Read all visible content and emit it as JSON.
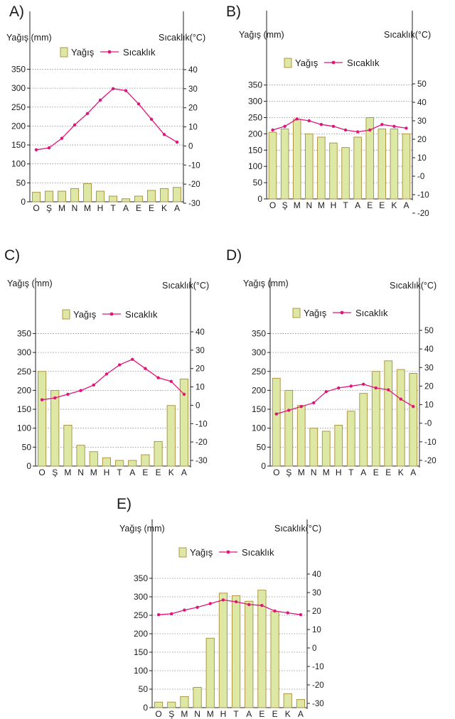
{
  "legend": {
    "precip_label": "Yağış",
    "temp_label": "Sıcaklık"
  },
  "ylabel": "Yağış (mm)",
  "y2label": "Sıcaklık(°C)",
  "colors": {
    "bar_fill": "#dde8a4",
    "bar_stroke": "#a88e3a",
    "temp_line": "#e0157a",
    "grid": "#8a8a8a",
    "axis": "#222222"
  },
  "chart_data": [
    {
      "type": "bar",
      "label": "A)",
      "categories": [
        "O",
        "Ş",
        "M",
        "N",
        "M",
        "H",
        "T",
        "A",
        "E",
        "E",
        "K",
        "A"
      ],
      "series": [
        {
          "name": "Yağış",
          "type": "bar",
          "axis": "left",
          "values": [
            25,
            28,
            28,
            35,
            48,
            28,
            15,
            8,
            15,
            30,
            35,
            38
          ]
        },
        {
          "name": "Sıcaklık",
          "type": "line",
          "axis": "right",
          "values": [
            -2,
            -1,
            4,
            11,
            17,
            24,
            30,
            29,
            22,
            14,
            6,
            2
          ]
        }
      ],
      "ylim": [
        0,
        350
      ],
      "yticks": [
        0,
        50,
        100,
        150,
        200,
        250,
        300,
        350
      ],
      "y2lim": [
        -30,
        40
      ],
      "y2ticks": [
        -30,
        -20,
        -10,
        0,
        10,
        20,
        30,
        40
      ],
      "y2tick_labels": [
        "-30",
        "-20",
        "-10",
        "0",
        "10",
        "20",
        "30",
        "40"
      ],
      "grid": "dotted-horizontal"
    },
    {
      "type": "bar",
      "label": "B)",
      "categories": [
        "O",
        "Ş",
        "M",
        "N",
        "M",
        "H",
        "T",
        "A",
        "E",
        "E",
        "K",
        "A"
      ],
      "series": [
        {
          "name": "Yağış",
          "type": "bar",
          "axis": "left",
          "values": [
            205,
            215,
            245,
            200,
            190,
            172,
            158,
            190,
            250,
            215,
            215,
            200
          ]
        },
        {
          "name": "Sıcaklık",
          "type": "line",
          "axis": "right",
          "values": [
            25,
            27,
            31,
            30,
            28,
            27,
            25,
            24,
            25,
            28,
            27,
            26
          ]
        }
      ],
      "ylim": [
        0,
        350
      ],
      "yticks": [
        0,
        50,
        100,
        150,
        200,
        250,
        300,
        350
      ],
      "y2lim": [
        -20,
        50
      ],
      "y2ticks": [
        -20,
        -10,
        0,
        10,
        20,
        30,
        40,
        50
      ],
      "y2tick_labels": [
        "-20",
        "-10",
        "-0",
        "10",
        "20",
        "30",
        "40",
        "50"
      ],
      "grid": "dotted-horizontal"
    },
    {
      "type": "bar",
      "label": "C)",
      "categories": [
        "O",
        "Ş",
        "M",
        "N",
        "M",
        "H",
        "T",
        "A",
        "E",
        "E",
        "K",
        "A"
      ],
      "series": [
        {
          "name": "Yağış",
          "type": "bar",
          "axis": "left",
          "values": [
            250,
            200,
            108,
            55,
            38,
            22,
            15,
            15,
            30,
            65,
            160,
            230
          ]
        },
        {
          "name": "Sıcaklık",
          "type": "line",
          "axis": "right",
          "values": [
            3,
            4,
            6,
            8,
            11,
            17,
            22,
            25,
            20,
            15,
            13,
            6
          ]
        }
      ],
      "ylim": [
        0,
        350
      ],
      "yticks": [
        0,
        50,
        100,
        150,
        200,
        250,
        300,
        350
      ],
      "y2lim": [
        -30,
        40
      ],
      "y2ticks": [
        -30,
        -20,
        -10,
        0,
        10,
        20,
        30,
        40
      ],
      "y2tick_labels": [
        "-30",
        "-20",
        "-10",
        "0",
        "10",
        "20",
        "30",
        "40"
      ],
      "grid": "dotted-horizontal"
    },
    {
      "type": "bar",
      "label": "D)",
      "categories": [
        "O",
        "Ş",
        "M",
        "N",
        "M",
        "H",
        "T",
        "A",
        "E",
        "E",
        "K",
        "A"
      ],
      "series": [
        {
          "name": "Yağış",
          "type": "bar",
          "axis": "left",
          "values": [
            232,
            200,
            160,
            100,
            92,
            108,
            145,
            192,
            250,
            278,
            255,
            245
          ]
        },
        {
          "name": "Sıcaklık",
          "type": "line",
          "axis": "right",
          "values": [
            5,
            7,
            9,
            11,
            17,
            19,
            20,
            21,
            19,
            18,
            13,
            9
          ]
        }
      ],
      "ylim": [
        0,
        350
      ],
      "yticks": [
        0,
        50,
        100,
        150,
        200,
        250,
        300,
        350
      ],
      "y2lim": [
        -20,
        50
      ],
      "y2ticks": [
        -20,
        -10,
        0,
        10,
        20,
        30,
        40,
        50
      ],
      "y2tick_labels": [
        "-20",
        "-10",
        "-0",
        "10",
        "20",
        "30",
        "40",
        "50"
      ],
      "grid": "dotted-horizontal"
    },
    {
      "type": "bar",
      "label": "E)",
      "categories": [
        "O",
        "Ş",
        "M",
        "N",
        "M",
        "H",
        "T",
        "A",
        "E",
        "E",
        "K",
        "A"
      ],
      "series": [
        {
          "name": "Yağış",
          "type": "bar",
          "axis": "left",
          "values": [
            15,
            15,
            30,
            55,
            188,
            310,
            303,
            288,
            318,
            260,
            38,
            22
          ]
        },
        {
          "name": "Sıcaklık",
          "type": "line",
          "axis": "right",
          "values": [
            18,
            18.5,
            20.5,
            22,
            24,
            26,
            25,
            23.5,
            23,
            20,
            19,
            18
          ]
        }
      ],
      "ylim": [
        0,
        350
      ],
      "yticks": [
        0,
        50,
        100,
        150,
        200,
        250,
        300,
        350
      ],
      "y2lim": [
        -30,
        40
      ],
      "y2ticks": [
        -30,
        -20,
        -10,
        0,
        10,
        20,
        30,
        40
      ],
      "y2tick_labels": [
        "-30",
        "-20",
        "-10",
        "0",
        "10",
        "20",
        "30",
        "40"
      ],
      "grid": "dotted-horizontal"
    }
  ]
}
